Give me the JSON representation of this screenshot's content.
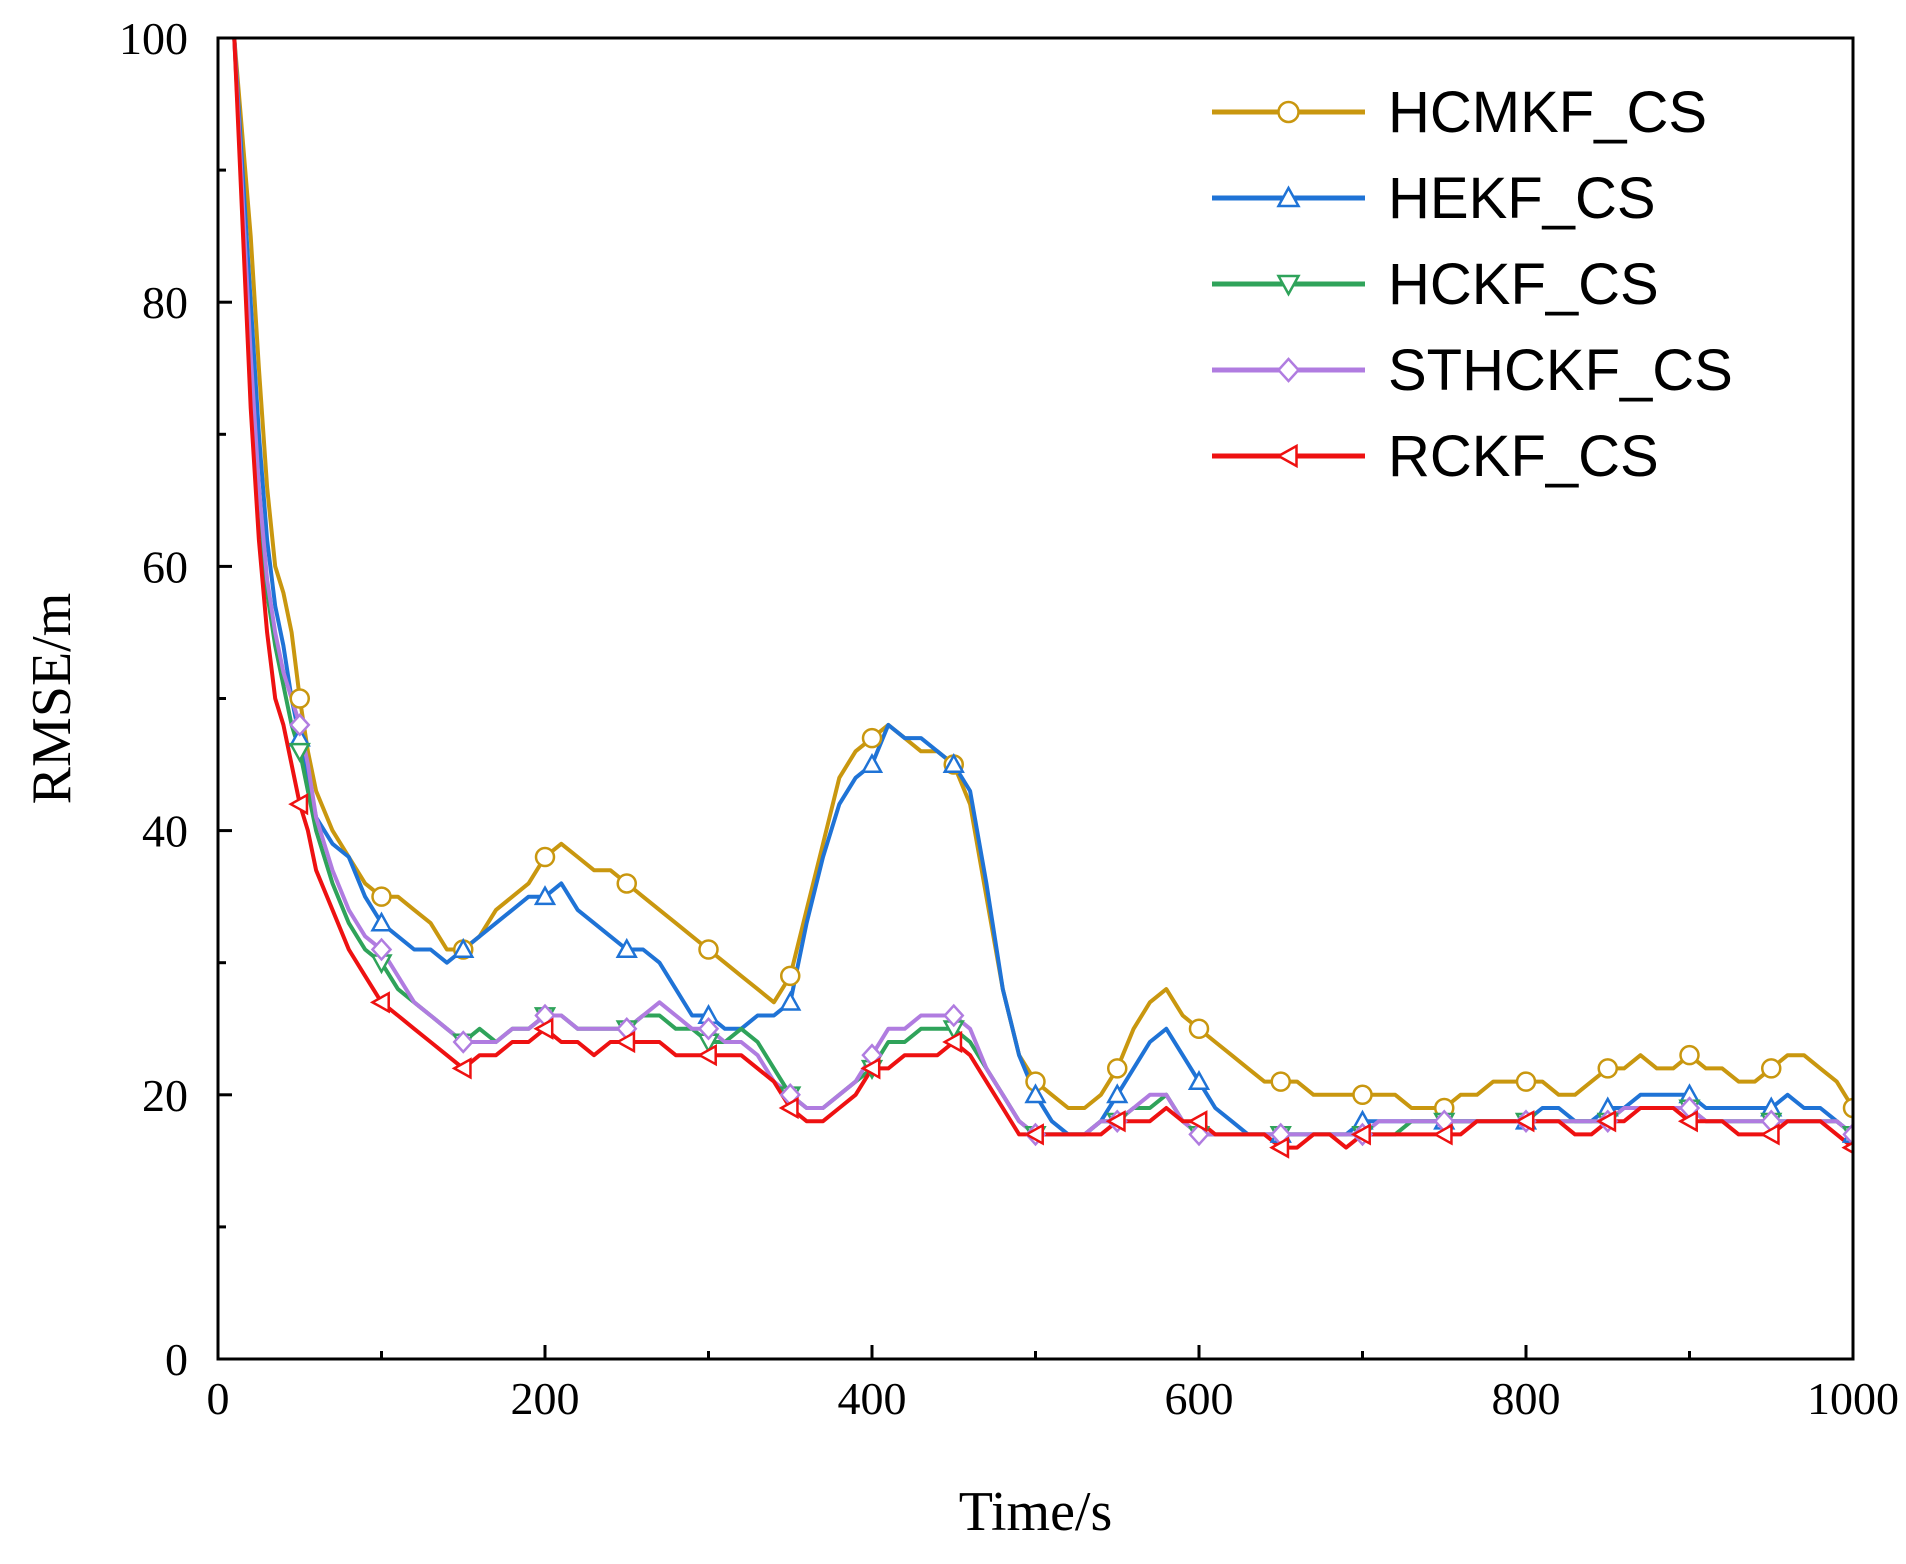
{
  "chart_data": {
    "type": "line",
    "title": "",
    "xlabel": "Time/s",
    "ylabel": "RMSE/m",
    "xlim": [
      0,
      1000
    ],
    "ylim": [
      0,
      100
    ],
    "xticks": [
      0,
      200,
      400,
      600,
      800,
      1000
    ],
    "xtick_labels": [
      "0",
      "200",
      "400",
      "600",
      "800",
      "1000"
    ],
    "yticks": [
      0,
      20,
      40,
      60,
      80,
      100
    ],
    "ytick_labels": [
      "0",
      "20",
      "40",
      "60",
      "80",
      "100"
    ],
    "x_minor_step": 100,
    "y_minor_step": 10,
    "grid": false,
    "legend_position": "top-right",
    "marker_every": 50,
    "series": [
      {
        "name": "HCMKF_CS",
        "color": "#C9970F",
        "marker": "circle",
        "x": [
          10,
          20,
          25,
          30,
          35,
          40,
          45,
          50,
          55,
          60,
          70,
          80,
          90,
          100,
          110,
          120,
          130,
          140,
          150,
          160,
          170,
          180,
          190,
          200,
          210,
          220,
          230,
          240,
          250,
          260,
          270,
          280,
          290,
          300,
          310,
          320,
          330,
          340,
          350,
          360,
          370,
          380,
          390,
          400,
          410,
          420,
          430,
          440,
          450,
          460,
          470,
          480,
          490,
          500,
          510,
          520,
          530,
          540,
          550,
          560,
          570,
          580,
          590,
          600,
          610,
          620,
          630,
          640,
          650,
          660,
          670,
          680,
          690,
          700,
          710,
          720,
          730,
          740,
          750,
          760,
          770,
          780,
          790,
          800,
          810,
          820,
          830,
          840,
          850,
          860,
          870,
          880,
          890,
          900,
          910,
          920,
          930,
          940,
          950,
          960,
          970,
          980,
          990,
          1000
        ],
        "y": [
          100,
          85,
          75,
          66,
          60,
          58,
          55,
          50,
          46,
          43,
          40,
          38,
          36,
          35,
          35,
          34,
          33,
          31,
          31,
          32,
          34,
          35,
          36,
          38,
          39,
          38,
          37,
          37,
          36,
          35,
          34,
          33,
          32,
          31,
          30,
          29,
          28,
          27,
          29,
          34,
          39,
          44,
          46,
          47,
          48,
          47,
          46,
          46,
          45,
          42,
          35,
          28,
          23,
          21,
          20,
          19,
          19,
          20,
          22,
          25,
          27,
          28,
          26,
          25,
          24,
          23,
          22,
          21,
          21,
          21,
          20,
          20,
          20,
          20,
          20,
          20,
          19,
          19,
          19,
          20,
          20,
          21,
          21,
          21,
          21,
          20,
          20,
          21,
          22,
          22,
          23,
          22,
          22,
          23,
          22,
          22,
          21,
          21,
          22,
          23,
          23,
          22,
          21,
          19
        ]
      },
      {
        "name": "HEKF_CS",
        "color": "#1F73D6",
        "marker": "triangle-up",
        "x": [
          10,
          20,
          25,
          30,
          35,
          40,
          45,
          50,
          55,
          60,
          70,
          80,
          90,
          100,
          110,
          120,
          130,
          140,
          150,
          160,
          170,
          180,
          190,
          200,
          210,
          220,
          230,
          240,
          250,
          260,
          270,
          280,
          290,
          300,
          310,
          320,
          330,
          340,
          350,
          360,
          370,
          380,
          390,
          400,
          410,
          420,
          430,
          440,
          450,
          460,
          470,
          480,
          490,
          500,
          510,
          520,
          530,
          540,
          550,
          560,
          570,
          580,
          590,
          600,
          610,
          620,
          630,
          640,
          650,
          660,
          670,
          680,
          690,
          700,
          710,
          720,
          730,
          740,
          750,
          760,
          770,
          780,
          790,
          800,
          810,
          820,
          830,
          840,
          850,
          860,
          870,
          880,
          890,
          900,
          910,
          920,
          930,
          940,
          950,
          960,
          970,
          980,
          990,
          1000
        ],
        "y": [
          100,
          80,
          70,
          62,
          57,
          54,
          50,
          47,
          44,
          41,
          39,
          38,
          35,
          33,
          32,
          31,
          31,
          30,
          31,
          32,
          33,
          34,
          35,
          35,
          36,
          34,
          33,
          32,
          31,
          31,
          30,
          28,
          26,
          26,
          25,
          25,
          26,
          26,
          27,
          33,
          38,
          42,
          44,
          45,
          48,
          47,
          47,
          46,
          45,
          43,
          36,
          28,
          23,
          20,
          18,
          17,
          17,
          18,
          20,
          22,
          24,
          25,
          23,
          21,
          19,
          18,
          17,
          17,
          17,
          17,
          17,
          17,
          17,
          18,
          18,
          18,
          18,
          18,
          18,
          18,
          18,
          18,
          18,
          18,
          19,
          19,
          18,
          18,
          19,
          19,
          20,
          20,
          20,
          20,
          19,
          19,
          19,
          19,
          19,
          20,
          19,
          19,
          18,
          17
        ]
      },
      {
        "name": "HCKF_CS",
        "color": "#2FA35A",
        "marker": "triangle-down",
        "x": [
          10,
          20,
          25,
          30,
          35,
          40,
          45,
          50,
          55,
          60,
          70,
          80,
          90,
          100,
          110,
          120,
          130,
          140,
          150,
          160,
          170,
          180,
          190,
          200,
          210,
          220,
          230,
          240,
          250,
          260,
          270,
          280,
          290,
          300,
          310,
          320,
          330,
          340,
          350,
          360,
          370,
          380,
          390,
          400,
          410,
          420,
          430,
          440,
          450,
          460,
          470,
          480,
          490,
          500,
          510,
          520,
          530,
          540,
          550,
          560,
          570,
          580,
          590,
          600,
          610,
          620,
          630,
          640,
          650,
          660,
          670,
          680,
          690,
          700,
          710,
          720,
          730,
          740,
          750,
          760,
          770,
          780,
          790,
          800,
          810,
          820,
          830,
          840,
          850,
          860,
          870,
          880,
          890,
          900,
          910,
          920,
          930,
          940,
          950,
          960,
          970,
          980,
          990,
          1000
        ],
        "y": [
          100,
          75,
          65,
          58,
          54,
          51,
          48,
          46,
          43,
          40,
          36,
          33,
          31,
          30,
          28,
          27,
          26,
          25,
          24,
          25,
          24,
          25,
          25,
          26,
          26,
          25,
          25,
          25,
          25,
          26,
          26,
          25,
          25,
          24,
          24,
          25,
          24,
          22,
          20,
          19,
          19,
          20,
          21,
          22,
          24,
          24,
          25,
          25,
          25,
          24,
          22,
          20,
          18,
          17,
          17,
          17,
          17,
          18,
          18,
          19,
          19,
          20,
          18,
          17,
          17,
          17,
          17,
          17,
          17,
          17,
          17,
          17,
          17,
          17,
          17,
          17,
          18,
          18,
          18,
          18,
          18,
          18,
          18,
          18,
          18,
          18,
          18,
          18,
          18,
          19,
          19,
          19,
          19,
          19,
          18,
          18,
          18,
          18,
          18,
          18,
          18,
          18,
          18,
          17
        ]
      },
      {
        "name": "STHCKF_CS",
        "color": "#B07CE0",
        "marker": "diamond",
        "x": [
          10,
          20,
          25,
          30,
          35,
          40,
          45,
          50,
          55,
          60,
          70,
          80,
          90,
          100,
          110,
          120,
          130,
          140,
          150,
          160,
          170,
          180,
          190,
          200,
          210,
          220,
          230,
          240,
          250,
          260,
          270,
          280,
          290,
          300,
          310,
          320,
          330,
          340,
          350,
          360,
          370,
          380,
          390,
          400,
          410,
          420,
          430,
          440,
          450,
          460,
          470,
          480,
          490,
          500,
          510,
          520,
          530,
          540,
          550,
          560,
          570,
          580,
          590,
          600,
          610,
          620,
          630,
          640,
          650,
          660,
          670,
          680,
          690,
          700,
          710,
          720,
          730,
          740,
          750,
          760,
          770,
          780,
          790,
          800,
          810,
          820,
          830,
          840,
          850,
          860,
          870,
          880,
          890,
          900,
          910,
          920,
          930,
          940,
          950,
          960,
          970,
          980,
          990,
          1000
        ],
        "y": [
          100,
          76,
          66,
          59,
          55,
          52,
          50,
          48,
          45,
          41,
          37,
          34,
          32,
          31,
          29,
          27,
          26,
          25,
          24,
          24,
          24,
          25,
          25,
          26,
          26,
          25,
          25,
          25,
          25,
          26,
          27,
          26,
          25,
          25,
          24,
          24,
          23,
          21,
          20,
          19,
          19,
          20,
          21,
          23,
          25,
          25,
          26,
          26,
          26,
          25,
          22,
          20,
          18,
          17,
          17,
          17,
          17,
          18,
          18,
          19,
          20,
          20,
          18,
          17,
          17,
          17,
          17,
          17,
          17,
          17,
          17,
          17,
          17,
          17,
          18,
          18,
          18,
          18,
          18,
          18,
          18,
          18,
          18,
          18,
          18,
          18,
          18,
          18,
          18,
          19,
          19,
          19,
          19,
          19,
          18,
          18,
          18,
          18,
          18,
          18,
          18,
          18,
          18,
          17
        ]
      },
      {
        "name": "RCKF_CS",
        "color": "#EE1111",
        "marker": "triangle-left",
        "x": [
          10,
          20,
          25,
          30,
          35,
          40,
          45,
          50,
          55,
          60,
          70,
          80,
          90,
          100,
          110,
          120,
          130,
          140,
          150,
          160,
          170,
          180,
          190,
          200,
          210,
          220,
          230,
          240,
          250,
          260,
          270,
          280,
          290,
          300,
          310,
          320,
          330,
          340,
          350,
          360,
          370,
          380,
          390,
          400,
          410,
          420,
          430,
          440,
          450,
          460,
          470,
          480,
          490,
          500,
          510,
          520,
          530,
          540,
          550,
          560,
          570,
          580,
          590,
          600,
          610,
          620,
          630,
          640,
          650,
          660,
          670,
          680,
          690,
          700,
          710,
          720,
          730,
          740,
          750,
          760,
          770,
          780,
          790,
          800,
          810,
          820,
          830,
          840,
          850,
          860,
          870,
          880,
          890,
          900,
          910,
          920,
          930,
          940,
          950,
          960,
          970,
          980,
          990,
          1000
        ],
        "y": [
          100,
          72,
          62,
          55,
          50,
          48,
          45,
          42,
          40,
          37,
          34,
          31,
          29,
          27,
          26,
          25,
          24,
          23,
          22,
          23,
          23,
          24,
          24,
          25,
          24,
          24,
          23,
          24,
          24,
          24,
          24,
          23,
          23,
          23,
          23,
          23,
          22,
          21,
          19,
          18,
          18,
          19,
          20,
          22,
          22,
          23,
          23,
          23,
          24,
          23,
          21,
          19,
          17,
          17,
          17,
          17,
          17,
          17,
          18,
          18,
          18,
          19,
          18,
          18,
          17,
          17,
          17,
          17,
          16,
          16,
          17,
          17,
          16,
          17,
          17,
          17,
          17,
          17,
          17,
          17,
          18,
          18,
          18,
          18,
          18,
          18,
          17,
          17,
          18,
          18,
          19,
          19,
          19,
          18,
          18,
          18,
          17,
          17,
          17,
          18,
          18,
          18,
          17,
          16
        ]
      }
    ]
  }
}
